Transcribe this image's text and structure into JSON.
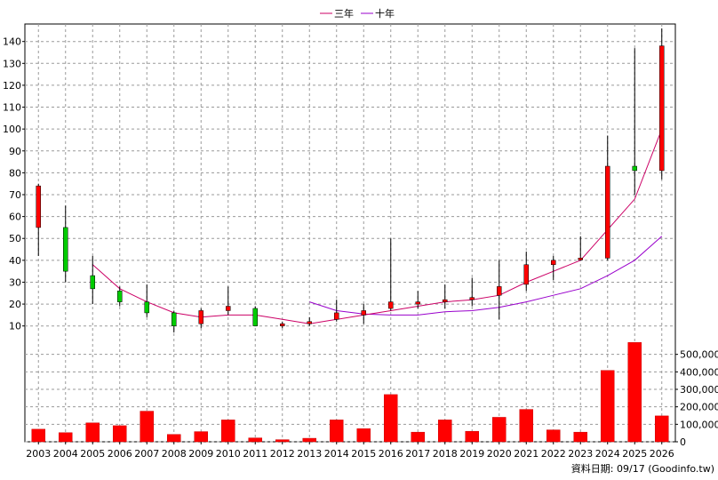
{
  "legend": {
    "ma3_label": "三年",
    "ma10_label": "十年"
  },
  "footer": {
    "source": "資料日期: 09/17  (Goodinfo.tw)"
  },
  "colors": {
    "up": "#ff0000",
    "down": "#00cc00",
    "ma3": "#cc0066",
    "ma10": "#9900cc",
    "volume": "#ff0000",
    "grid": "#9a9a9a"
  },
  "chart_data": [
    {
      "type": "candlestick",
      "x": [
        "2003",
        "2004",
        "2005",
        "2006",
        "2007",
        "2008",
        "2009",
        "2010",
        "2011",
        "2012",
        "2013",
        "2014",
        "2015",
        "2016",
        "2017",
        "2018",
        "2019",
        "2020",
        "2021",
        "2022",
        "2023",
        "2024",
        "2025",
        "2026"
      ],
      "ohlc": [
        [
          55,
          75,
          42,
          74
        ],
        [
          55,
          65,
          30,
          35
        ],
        [
          33,
          42,
          20,
          27
        ],
        [
          26,
          28,
          19,
          21
        ],
        [
          21,
          29,
          14,
          16
        ],
        [
          16,
          17,
          7,
          10
        ],
        [
          11,
          18,
          9,
          17
        ],
        [
          17,
          28,
          15,
          19
        ],
        [
          18,
          19,
          10,
          10
        ],
        [
          10,
          12,
          9,
          11
        ],
        [
          11,
          14,
          10,
          12
        ],
        [
          13,
          22,
          12,
          16
        ],
        [
          15,
          20,
          11,
          17
        ],
        [
          18,
          50,
          17,
          21
        ],
        [
          20,
          26,
          18,
          21
        ],
        [
          21,
          29,
          18,
          22
        ],
        [
          22,
          32,
          19,
          23
        ],
        [
          24,
          40,
          13,
          28
        ],
        [
          29,
          44,
          26,
          38
        ],
        [
          38,
          42,
          31,
          40
        ],
        [
          41,
          51,
          40,
          41
        ],
        [
          41,
          97,
          40,
          83
        ],
        [
          83,
          137,
          70,
          81
        ],
        [
          81,
          146,
          77,
          138
        ]
      ],
      "ma3": [
        null,
        null,
        38,
        27,
        21,
        16,
        14,
        15,
        15,
        13,
        11,
        13,
        15,
        17,
        19,
        21,
        22,
        24,
        30,
        35,
        40,
        54,
        68,
        100
      ],
      "ma10": [
        null,
        null,
        null,
        null,
        null,
        null,
        null,
        null,
        null,
        null,
        21,
        17,
        15.5,
        15,
        15,
        16.5,
        17,
        18.5,
        21,
        24,
        27,
        33,
        40,
        51
      ],
      "series": [
        {
          "name": "三年",
          "values": [
            null,
            null,
            38,
            27,
            21,
            16,
            14,
            15,
            15,
            13,
            11,
            13,
            15,
            17,
            19,
            21,
            22,
            24,
            30,
            35,
            40,
            54,
            68,
            100
          ]
        },
        {
          "name": "十年",
          "values": [
            null,
            null,
            null,
            null,
            null,
            null,
            null,
            null,
            null,
            null,
            21,
            17,
            15.5,
            15,
            15,
            16.5,
            17,
            18.5,
            21,
            24,
            27,
            33,
            40,
            51
          ]
        }
      ],
      "y_ticks": [
        10,
        20,
        30,
        40,
        50,
        60,
        70,
        80,
        90,
        100,
        110,
        120,
        130,
        140
      ],
      "ylim": [
        5,
        148
      ],
      "grid": true,
      "legend": "top-center"
    },
    {
      "type": "bar",
      "categories": [
        "2003",
        "2004",
        "2005",
        "2006",
        "2007",
        "2008",
        "2009",
        "2010",
        "2011",
        "2012",
        "2013",
        "2014",
        "2015",
        "2016",
        "2017",
        "2018",
        "2019",
        "2020",
        "2021",
        "2022",
        "2023",
        "2024",
        "2025",
        "2026"
      ],
      "values": [
        72000,
        52000,
        108000,
        92000,
        175000,
        42000,
        58000,
        125000,
        22000,
        12000,
        20000,
        125000,
        75000,
        270000,
        55000,
        125000,
        60000,
        140000,
        185000,
        68000,
        55000,
        408000,
        568000,
        148000
      ],
      "y_ticks": [
        "0",
        "100,000",
        "200,000",
        "300,000",
        "400,000",
        "500,000"
      ],
      "ylim": [
        0,
        600000
      ],
      "grid": true
    }
  ]
}
